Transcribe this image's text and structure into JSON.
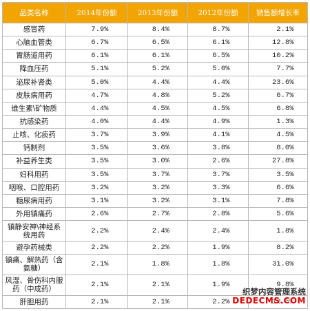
{
  "table": {
    "headers": [
      "品类名称",
      "2014年份额",
      "2013年份额",
      "2012年份额",
      "销售额增长率"
    ],
    "rows": [
      {
        "name": "感冒药",
        "y2014": "7.9%",
        "y2013": "8.4%",
        "y2012": "8.7%",
        "growth": "2.1%"
      },
      {
        "name": "心脑血管类",
        "y2014": "6.7%",
        "y2013": "6.5%",
        "y2012": "6.1%",
        "growth": "12.8%"
      },
      {
        "name": "胃肠道用药",
        "y2014": "6.1%",
        "y2013": "6.1%",
        "y2012": "6.5%",
        "growth": "10.2%"
      },
      {
        "name": "降血压药",
        "y2014": "5.1%",
        "y2013": "5.2%",
        "y2012": "5.0%",
        "growth": "7.7%"
      },
      {
        "name": "泌尿补肾类",
        "y2014": "5.0%",
        "y2013": "4.4%",
        "y2012": "4.4%",
        "growth": "23.6%"
      },
      {
        "name": "皮肤病用药",
        "y2014": "4.7%",
        "y2013": "4.8%",
        "y2012": "5.2%",
        "growth": "6.7%"
      },
      {
        "name": "维生素\\矿物质",
        "y2014": "4.4%",
        "y2013": "4.5%",
        "y2012": "4.5%",
        "growth": "6.8%"
      },
      {
        "name": "抗感染药",
        "y2014": "4.0%",
        "y2013": "4.4%",
        "y2012": "4.9%",
        "growth": "1.3%"
      },
      {
        "name": "止咳、化痰药",
        "y2014": "3.7%",
        "y2013": "3.9%",
        "y2012": "4.1%",
        "growth": "4.5%"
      },
      {
        "name": "钙制剂",
        "y2014": "3.5%",
        "y2013": "3.6%",
        "y2012": "3.8%",
        "growth": "8.0%"
      },
      {
        "name": "补益养生类",
        "y2014": "3.5%",
        "y2013": "3.0%",
        "y2012": "2.6%",
        "growth": "27.8%"
      },
      {
        "name": "妇科用药",
        "y2014": "3.5%",
        "y2013": "3.7%",
        "y2012": "3.7%",
        "growth": "3.5%"
      },
      {
        "name": "咽喉、口腔用药",
        "y2014": "3.2%",
        "y2013": "3.2%",
        "y2012": "3.3%",
        "growth": "6.6%"
      },
      {
        "name": "糖尿病用药",
        "y2014": "3.1%",
        "y2013": "3.2%",
        "y2012": "3.1%",
        "growth": "7.8%"
      },
      {
        "name": "外用镇痛药",
        "y2014": "2.6%",
        "y2013": "2.7%",
        "y2012": "2.8%",
        "growth": "5.6%"
      },
      {
        "name": "镇静安神\\神经系统用药",
        "y2014": "2.2%",
        "y2013": "2.4%",
        "y2012": "2.4%",
        "growth": "1.8%"
      },
      {
        "name": "避孕药械类",
        "y2014": "2.2%",
        "y2013": "2.2%",
        "y2012": "1.9%",
        "growth": "8.2%"
      },
      {
        "name": "镇痛、解热药（含氨糖）",
        "y2014": "2.1%",
        "y2013": "1.8%",
        "y2012": "1.8%",
        "growth": "31.0%"
      },
      {
        "name": "风湿、骨伤科内服药（中成药）",
        "y2014": "2.1%",
        "y2013": "2.1%",
        "y2012": "1.9%",
        "growth": "9.8%"
      },
      {
        "name": "肝胆用药",
        "y2014": "2.1%",
        "y2013": "2.1%",
        "y2012": "2.2%",
        "growth": "13.5%"
      }
    ]
  },
  "watermark": {
    "line1": "织梦内容管理系统",
    "line2": "DEDECMS.COM"
  }
}
